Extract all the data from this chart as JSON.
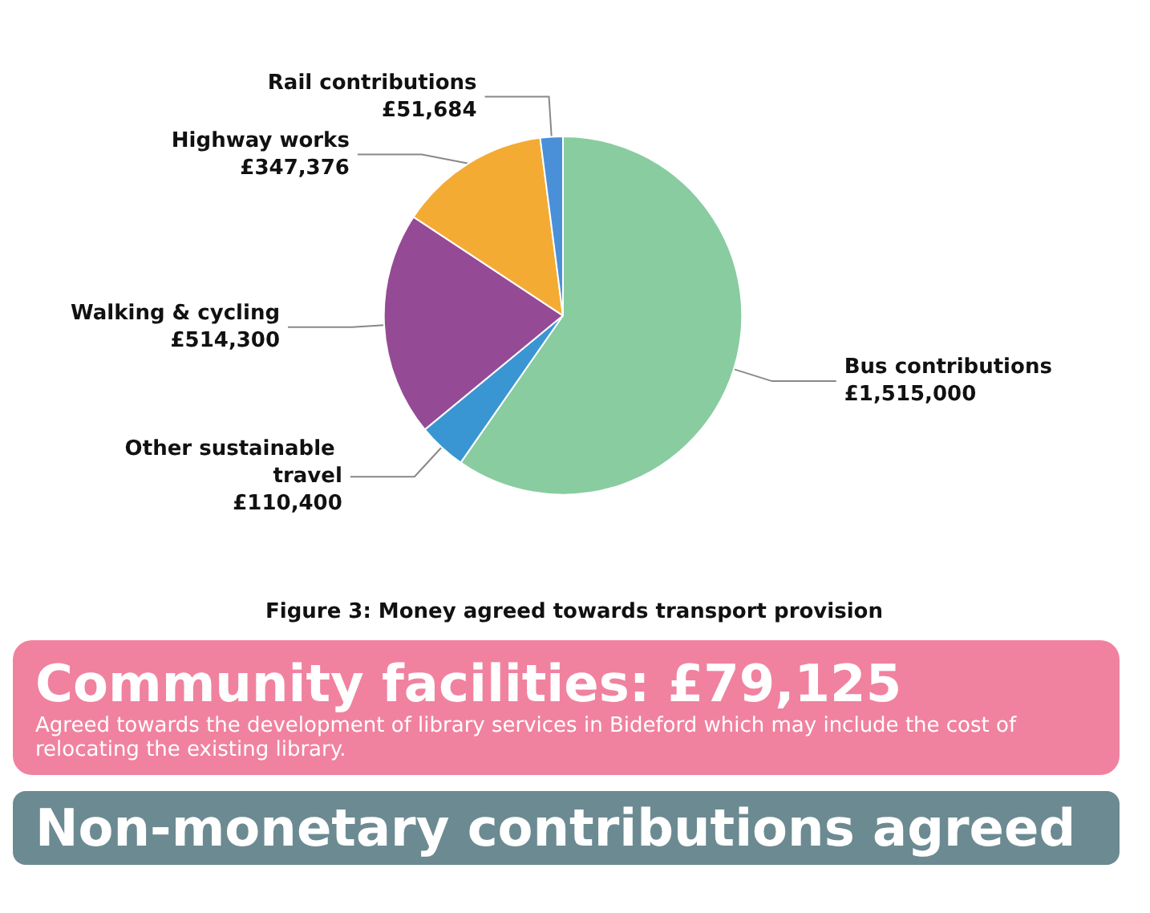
{
  "chart_data": {
    "type": "pie",
    "title": "Figure 3: Money agreed towards transport provision",
    "categories": [
      "Bus contributions",
      "Other sustainable travel",
      "Walking & cycling",
      "Highway works",
      "Rail contributions"
    ],
    "values": [
      1515000,
      110400,
      514300,
      347376,
      51684
    ],
    "value_labels": [
      "£1,515,000",
      "£110,400",
      "£514,300",
      "£347,376",
      "£51,684"
    ],
    "colors": [
      "#88cca0",
      "#3a96d2",
      "#954a96",
      "#f4ab33",
      "#4a90d8"
    ],
    "legend": false,
    "annotations": [
      "Community facilities: £79,125",
      "Agreed towards the development of library services in Bideford which may include the cost of relocating the existing library.",
      "Non-monetary contributions agreed"
    ]
  }
}
